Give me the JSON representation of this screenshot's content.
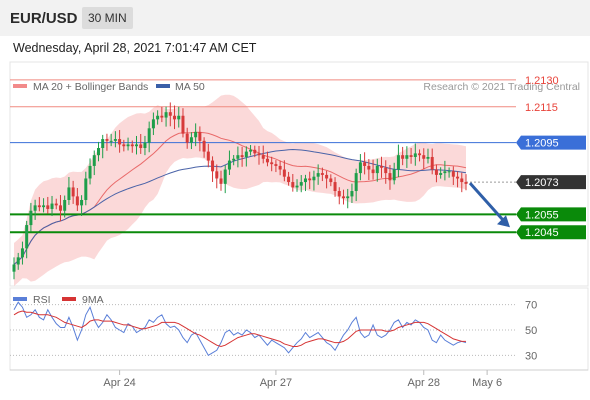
{
  "header": {
    "pair": "EUR/USD",
    "timeframe": "30 MIN",
    "timestamp": "Wednesday, April 28, 2021 7:01:47 AM CET"
  },
  "credit": "Research © 2021 Trading Central",
  "colors": {
    "resistance": "#e8433a",
    "support": "#0a8a0a",
    "pivot": "#3a6fd8",
    "current": "#333333",
    "candle_up": "#1e9e4a",
    "candle_down": "#d73a3a",
    "band": "#f9c9c9",
    "ma20": "#e96a6a",
    "ma50": "#4a63a8",
    "rsi": "#5a7fd8",
    "rsi_ma": "#d63434",
    "arrow": "#2f5fa8"
  },
  "chart_data": [
    {
      "type": "candlestick",
      "legend": [
        {
          "name": "MA 20 + Bollinger Bands",
          "color": "#f28a8a"
        },
        {
          "name": "MA 50",
          "color": "#3a5fa8"
        }
      ],
      "levels": [
        {
          "value": 1.213,
          "label": "1.2130",
          "kind": "resistance"
        },
        {
          "value": 1.2115,
          "label": "1.2115",
          "kind": "resistance"
        },
        {
          "value": 1.2095,
          "label": "1.2095",
          "kind": "pivot"
        },
        {
          "value": 1.2073,
          "label": "1.2073",
          "kind": "current"
        },
        {
          "value": 1.2055,
          "label": "1.2055",
          "kind": "support"
        },
        {
          "value": 1.2045,
          "label": "1.2045",
          "kind": "support"
        }
      ],
      "x_ticks": [
        {
          "label": "Apr 24",
          "index": 25
        },
        {
          "label": "Apr 27",
          "index": 62
        },
        {
          "label": "Apr 28",
          "index": 97
        },
        {
          "label": "May 6",
          "index": 112
        }
      ],
      "ylim": [
        1.2015,
        1.214
      ],
      "close_series": [
        1.2027,
        1.2031,
        1.2036,
        1.2049,
        1.2057,
        1.206,
        1.2059,
        1.206,
        1.2058,
        1.2061,
        1.206,
        1.2057,
        1.2063,
        1.207,
        1.2065,
        1.206,
        1.2063,
        1.2075,
        1.2082,
        1.2088,
        1.2092,
        1.2097,
        1.2096,
        1.2096,
        1.2097,
        1.2094,
        1.2093,
        1.2094,
        1.2093,
        1.2094,
        1.2092,
        1.2095,
        1.2103,
        1.2108,
        1.211,
        1.2109,
        1.2112,
        1.211,
        1.2108,
        1.211,
        1.21,
        1.2095,
        1.2098,
        1.2101,
        1.2096,
        1.209,
        1.2085,
        1.2079,
        1.2075,
        1.2072,
        1.208,
        1.2085,
        1.2086,
        1.2088,
        1.2087,
        1.209,
        1.2091,
        1.2089,
        1.2088,
        1.2086,
        1.2084,
        1.2083,
        1.2082,
        1.208,
        1.2076,
        1.2073,
        1.207,
        1.2071,
        1.2073,
        1.2075,
        1.2074,
        1.2076,
        1.2078,
        1.2077,
        1.2075,
        1.2073,
        1.2068,
        1.2065,
        1.2064,
        1.2065,
        1.2068,
        1.2078,
        1.2084,
        1.2082,
        1.208,
        1.2078,
        1.2082,
        1.2081,
        1.2078,
        1.2074,
        1.208,
        1.2088,
        1.2086,
        1.2088,
        1.2087,
        1.2089,
        1.2088,
        1.2086,
        1.2087,
        1.208,
        1.2077,
        1.2078,
        1.2079,
        1.2079,
        1.2076,
        1.2075,
        1.2073,
        1.2072
      ],
      "forecast": {
        "from": 1.2073,
        "to": 1.205,
        "direction": "down"
      }
    },
    {
      "type": "line",
      "legend": [
        {
          "name": "RSI",
          "color": "#5a7fd8"
        },
        {
          "name": "9MA",
          "color": "#d63434"
        }
      ],
      "y_ticks": [
        70,
        50,
        30
      ],
      "ylim": [
        20,
        80
      ],
      "rsi": [
        66,
        72,
        68,
        60,
        62,
        66,
        60,
        58,
        66,
        60,
        55,
        52,
        52,
        60,
        52,
        42,
        50,
        62,
        68,
        58,
        52,
        56,
        62,
        58,
        52,
        50,
        48,
        55,
        53,
        48,
        50,
        52,
        58,
        56,
        60,
        62,
        55,
        52,
        53,
        50,
        44,
        40,
        46,
        48,
        42,
        36,
        30,
        32,
        34,
        40,
        48,
        50,
        46,
        48,
        46,
        50,
        48,
        44,
        46,
        42,
        38,
        42,
        40,
        38,
        36,
        32,
        36,
        40,
        43,
        48,
        44,
        46,
        48,
        44,
        40,
        38,
        34,
        40,
        46,
        50,
        56,
        60,
        48,
        44,
        46,
        54,
        46,
        44,
        46,
        50,
        56,
        58,
        52,
        56,
        54,
        58,
        56,
        52,
        50,
        42,
        40,
        46,
        42,
        40,
        38,
        40,
        41,
        40
      ],
      "rsi_ma": [
        62,
        64,
        65,
        64,
        64,
        63,
        62,
        62,
        62,
        61,
        60,
        58,
        56,
        55,
        54,
        53,
        52,
        54,
        57,
        58,
        58,
        57,
        57,
        57,
        56,
        55,
        54,
        54,
        53,
        52,
        51,
        51,
        52,
        53,
        54,
        56,
        56,
        56,
        56,
        55,
        53,
        51,
        49,
        47,
        46,
        44,
        42,
        40,
        38,
        37,
        38,
        40,
        42,
        44,
        45,
        46,
        47,
        47,
        46,
        45,
        44,
        43,
        42,
        41,
        39,
        38,
        37,
        37,
        38,
        40,
        41,
        42,
        43,
        43,
        42,
        41,
        40,
        40,
        41,
        43,
        46,
        49,
        50,
        50,
        50,
        50,
        50,
        50,
        49,
        49,
        50,
        52,
        53,
        54,
        55,
        56,
        56,
        56,
        55,
        53,
        51,
        49,
        47,
        45,
        43,
        42,
        41,
        41
      ]
    }
  ]
}
